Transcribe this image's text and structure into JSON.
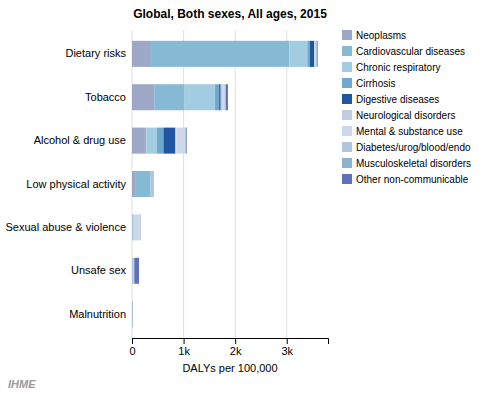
{
  "chart_data": {
    "type": "bar",
    "orientation": "horizontal",
    "stacked": true,
    "title": "Global, Both sexes, All ages, 2015",
    "xlabel": "DALYs per 100,000",
    "categories": [
      "Dietary risks",
      "Tobacco",
      "Alcohol & drug use",
      "Low physical activity",
      "Sexual abuse & violence",
      "Unsafe sex",
      "Malnutrition"
    ],
    "series": [
      {
        "name": "Neoplasms",
        "color": "#9da8c7",
        "values": [
          350,
          430,
          250,
          60,
          5,
          5,
          2
        ]
      },
      {
        "name": "Cardiovascular diseases",
        "color": "#85b9d4",
        "values": [
          2700,
          580,
          30,
          300,
          5,
          5,
          2
        ]
      },
      {
        "name": "Chronic respiratory",
        "color": "#a2cce0",
        "values": [
          350,
          600,
          200,
          20,
          5,
          5,
          2
        ]
      },
      {
        "name": "Cirrhosis",
        "color": "#6fa8cc",
        "values": [
          50,
          80,
          130,
          8,
          5,
          5,
          2
        ]
      },
      {
        "name": "Digestive diseases",
        "color": "#2255a0",
        "values": [
          80,
          30,
          230,
          8,
          5,
          5,
          2
        ]
      },
      {
        "name": "Neurological disorders",
        "color": "#c0cedf",
        "values": [
          15,
          40,
          20,
          5,
          5,
          5,
          2
        ]
      },
      {
        "name": "Mental & substance use",
        "color": "#cdd8e8",
        "values": [
          10,
          30,
          160,
          5,
          120,
          5,
          2
        ]
      },
      {
        "name": "Diabetes/urog/blood/endo",
        "color": "#b0c6dc",
        "values": [
          30,
          20,
          25,
          5,
          5,
          5,
          2
        ]
      },
      {
        "name": "Musculoskeletal disorders",
        "color": "#8eb3d0",
        "values": [
          10,
          10,
          10,
          5,
          5,
          5,
          2
        ]
      },
      {
        "name": "Other non-communicable",
        "color": "#6070b8",
        "values": [
          10,
          40,
          10,
          5,
          5,
          90,
          2
        ]
      }
    ],
    "xlim": [
      0,
      3800
    ],
    "xticks": [
      0,
      {
        "value": 1000,
        "label": "1k"
      },
      {
        "value": 2000,
        "label": "2k"
      },
      {
        "value": 3000,
        "label": "3k"
      }
    ],
    "grid": true,
    "legend": "right",
    "annotations": [
      "IHME"
    ]
  }
}
